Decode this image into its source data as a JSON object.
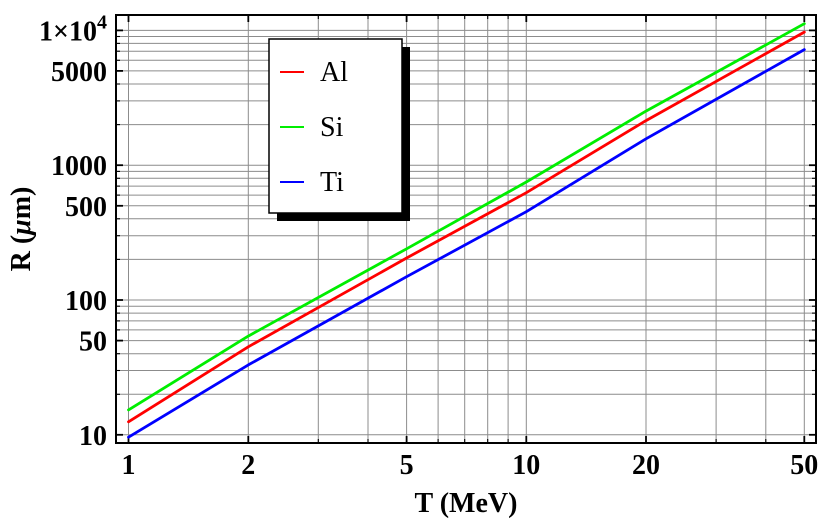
{
  "chart_data": {
    "type": "line",
    "scale": "log-log",
    "title": "",
    "xlabel": "T (MeV)",
    "ylabel": "R (μm)",
    "x_range": [
      0.93,
      53.5
    ],
    "y_range": [
      8.7,
      13000
    ],
    "grid": "all",
    "grid_color": "#8c8c8c",
    "frame_color": "#000000",
    "background": "#ffffff",
    "x_gridlines": [
      1,
      2,
      3,
      4,
      5,
      6,
      7,
      8,
      9,
      10,
      20,
      30,
      40,
      50
    ],
    "y_gridlines": [
      10,
      20,
      30,
      40,
      50,
      60,
      70,
      80,
      90,
      100,
      200,
      300,
      400,
      500,
      600,
      700,
      800,
      900,
      1000,
      2000,
      3000,
      4000,
      5000,
      6000,
      7000,
      8000,
      9000,
      10000
    ],
    "x_ticks": [
      {
        "value": 1,
        "label": "1"
      },
      {
        "value": 2,
        "label": "2"
      },
      {
        "value": 5,
        "label": "5"
      },
      {
        "value": 10,
        "label": "10"
      },
      {
        "value": 20,
        "label": "20"
      },
      {
        "value": 50,
        "label": "50"
      }
    ],
    "y_ticks": [
      {
        "value": 10,
        "label": "10"
      },
      {
        "value": 50,
        "label": "50"
      },
      {
        "value": 100,
        "label": "100"
      },
      {
        "value": 500,
        "label": "500"
      },
      {
        "value": 1000,
        "label": "1000"
      },
      {
        "value": 5000,
        "label": "5000"
      },
      {
        "value": 10000,
        "label": "1×10",
        "sup": "4"
      }
    ],
    "x": [
      1,
      2,
      5,
      10,
      20,
      50
    ],
    "series": [
      {
        "name": "Al",
        "color": "#ff0000",
        "values": [
          12.5,
          45,
          205,
          625,
          2140,
          9700
        ]
      },
      {
        "name": "Si",
        "color": "#00ee00",
        "values": [
          15.3,
          54,
          240,
          750,
          2520,
          11200
        ]
      },
      {
        "name": "Ti",
        "color": "#0000ff",
        "values": [
          9.6,
          33,
          149,
          452,
          1570,
          7200
        ]
      }
    ],
    "legend": {
      "position": "upper-left-inside",
      "entries": [
        "Al",
        "Si",
        "Ti"
      ],
      "background": "#ffffff",
      "border_color": "#000000",
      "shadow_color": "#000000"
    }
  }
}
